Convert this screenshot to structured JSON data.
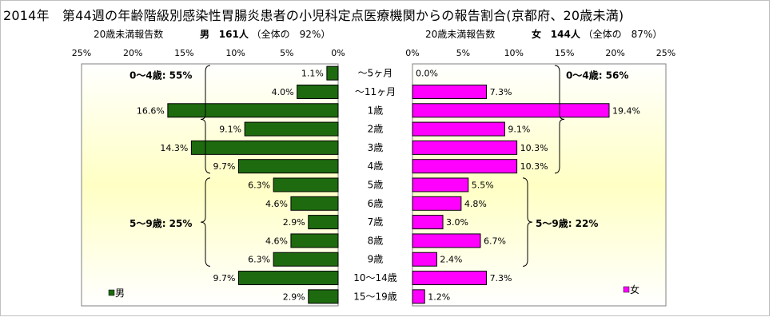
{
  "title": "2014年　第44週の年齢階級別感染性胃腸炎患者の小児科定点医療機関からの報告割合(京都府、20歳未満)",
  "chart_data": [
    {
      "type": "bar",
      "orientation": "horizontal",
      "direction": "right-to-left",
      "header": {
        "caption": "20歳未満報告数",
        "sex": "男",
        "count": "161人",
        "total_ratio": "（全体の　92%）"
      },
      "categories": [
        "～5ヶ月",
        "～11ヶ月",
        "1歳",
        "2歳",
        "3歳",
        "4歳",
        "5歳",
        "6歳",
        "7歳",
        "8歳",
        "9歳",
        "10～14歳",
        "15～19歳"
      ],
      "values": [
        1.1,
        4.0,
        16.6,
        9.1,
        14.3,
        9.7,
        6.3,
        4.6,
        2.9,
        4.6,
        6.3,
        9.7,
        2.9
      ],
      "data_labels": [
        "1.1%",
        "4.0%",
        "16.6%",
        "9.1%",
        "14.3%",
        "9.7%",
        "6.3%",
        "4.6%",
        "2.9%",
        "4.6%",
        "6.3%",
        "9.7%",
        "2.9%"
      ],
      "xlim": [
        0,
        25
      ],
      "ticks": [
        "25%",
        "20%",
        "15%",
        "10%",
        "5%",
        "0%"
      ],
      "legend": "男",
      "brackets": [
        "0～4歳: 55%",
        "5～9歳: 25%"
      ],
      "bar_color": "#1e6b0f"
    },
    {
      "type": "bar",
      "orientation": "horizontal",
      "direction": "left-to-right",
      "header": {
        "caption": "20歳未満報告数",
        "sex": "女",
        "count": "144人",
        "total_ratio": "（全体の　87%）"
      },
      "categories": [
        "～5ヶ月",
        "～11ヶ月",
        "1歳",
        "2歳",
        "3歳",
        "4歳",
        "5歳",
        "6歳",
        "7歳",
        "8歳",
        "9歳",
        "10～14歳",
        "15～19歳"
      ],
      "values": [
        0.0,
        7.3,
        19.4,
        9.1,
        10.3,
        10.3,
        5.5,
        4.8,
        3.0,
        6.7,
        2.4,
        7.3,
        1.2
      ],
      "data_labels": [
        "0.0%",
        "7.3%",
        "19.4%",
        "9.1%",
        "10.3%",
        "10.3%",
        "5.5%",
        "4.8%",
        "3.0%",
        "6.7%",
        "2.4%",
        "7.3%",
        "1.2%"
      ],
      "xlim": [
        0,
        25
      ],
      "ticks": [
        "0%",
        "5%",
        "10%",
        "15%",
        "20%",
        "25%"
      ],
      "legend": "女",
      "brackets": [
        "0～4歳: 56%",
        "5～9歳: 22%"
      ],
      "bar_color": "#ff00ff"
    }
  ]
}
